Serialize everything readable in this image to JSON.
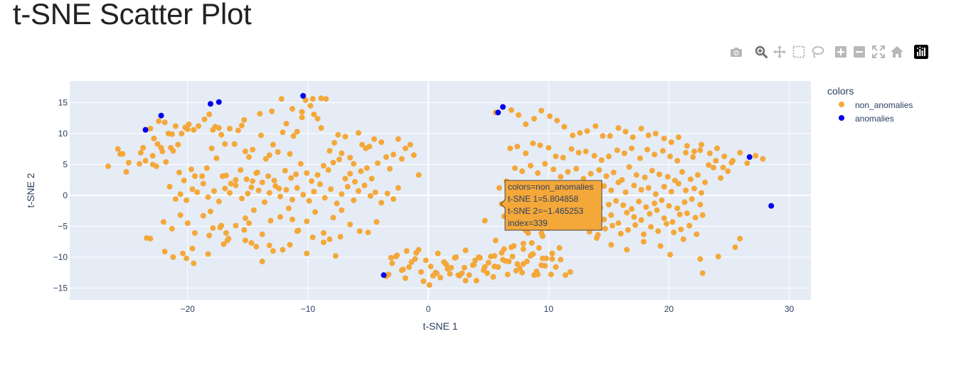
{
  "page": {
    "title": "t-SNE Scatter Plot"
  },
  "modebar": {
    "buttons": [
      {
        "name": "camera-icon",
        "title": "Download plot as a png"
      },
      {
        "name": "zoom-icon",
        "title": "Zoom"
      },
      {
        "name": "pan-icon",
        "title": "Pan"
      },
      {
        "name": "box-select-icon",
        "title": "Box Select"
      },
      {
        "name": "lasso-select-icon",
        "title": "Lasso Select"
      },
      {
        "name": "zoom-in-icon",
        "title": "Zoom in"
      },
      {
        "name": "zoom-out-icon",
        "title": "Zoom out"
      },
      {
        "name": "autoscale-icon",
        "title": "Autoscale"
      },
      {
        "name": "reset-axes-icon",
        "title": "Reset axes"
      },
      {
        "name": "plotly-logo-icon",
        "title": "Produced with Plotly"
      }
    ]
  },
  "colors": {
    "non_anomalies": "#F4A83A",
    "anomalies": "#0000EE",
    "plot_bg": "#E5ECF6",
    "grid": "#ffffff",
    "text": "#2a3f5f"
  },
  "chart_data": {
    "type": "scatter",
    "title": "",
    "xlabel": "t-SNE 1",
    "ylabel": "t-SNE 2",
    "xlim": [
      -29.8,
      31.8
    ],
    "ylim": [
      -16.9,
      18.5
    ],
    "xticks": [
      -20,
      -10,
      0,
      10,
      20,
      30
    ],
    "yticks": [
      -15,
      -10,
      -5,
      0,
      5,
      10,
      15
    ],
    "xtick_labels": [
      "−20",
      "−10",
      "0",
      "10",
      "20",
      "30"
    ],
    "ytick_labels": [
      "−15",
      "−10",
      "−5",
      "0",
      "5",
      "10",
      "15"
    ],
    "grid": true,
    "legend": {
      "title": "colors",
      "placement": "top-right",
      "entries": [
        "non_anomalies",
        "anomalies"
      ]
    },
    "hover": {
      "lines": [
        "colors=non_anomalies",
        "t-SNE 1=5.804858",
        "t-SNE 2=−1.465253",
        "index=339"
      ],
      "x": 5.804858,
      "y": -1.465253
    },
    "series": [
      {
        "name": "non_anomalies",
        "x": [
          -26.6,
          -25.8,
          -25.4,
          -25.1,
          -25.6,
          -24.9,
          -24.0,
          -23.9,
          -23.5,
          -22.9,
          -22.6,
          -22.2,
          -22.9,
          -23.7,
          -23.1,
          -22.4,
          -21.9,
          -21.6,
          -21.4,
          -21.2,
          -21.0,
          -20.8,
          -20.5,
          -20.2,
          -20.0,
          -19.9,
          -19.5,
          -19.1,
          -18.6,
          -18.2,
          -17.9,
          -17.7,
          -17.4,
          -17.2,
          -16.9,
          -16.5,
          -16.1,
          -15.8,
          -15.5,
          -15.2,
          -14.9,
          -14.6,
          -14.3,
          -13.9,
          -13.5,
          -13.2,
          -12.9,
          -12.5,
          -12.1,
          -11.8,
          -11.5,
          -11.2,
          -10.9,
          -10.5,
          -10.2,
          -9.8,
          -9.5,
          -9.2,
          -8.9,
          -8.5,
          -8.2,
          -7.8,
          -7.5,
          -7.2,
          -6.9,
          -6.5,
          -6.2,
          -5.8,
          -5.5,
          -5.2,
          -4.9,
          -4.5,
          -4.2,
          -3.9,
          -3.5,
          -3.2,
          -2.9,
          -2.5,
          -2.2,
          -1.9,
          -1.5,
          -1.2,
          -0.8,
          -22.8,
          -22.5,
          -22.1,
          -21.8,
          -21.3,
          -20.7,
          -20.3,
          -19.7,
          -19.4,
          -18.8,
          -18.4,
          -18.0,
          -17.6,
          -17.1,
          -16.8,
          -16.4,
          -16.0,
          -15.6,
          -15.1,
          -14.7,
          -14.2,
          -13.8,
          -13.3,
          -12.8,
          -12.4,
          -11.9,
          -11.4,
          -11.0,
          -10.6,
          -10.1,
          -9.7,
          -9.2,
          -8.7,
          -8.3,
          -7.9,
          -7.4,
          -6.9,
          -6.5,
          -6.1,
          -5.6,
          -5.1,
          -4.7,
          -21.5,
          -21.0,
          -20.6,
          -20.1,
          -19.6,
          -19.2,
          -18.7,
          -18.3,
          -17.8,
          -17.4,
          -16.9,
          -16.5,
          -16.0,
          -15.5,
          -15.0,
          -14.6,
          -14.1,
          -13.6,
          -13.2,
          -12.7,
          -12.3,
          -11.8,
          -11.3,
          -10.9,
          -10.4,
          -9.9,
          -9.5,
          -9.0,
          -8.6,
          -8.1,
          -7.6,
          -7.2,
          -6.7,
          -6.2,
          -5.8,
          -5.3,
          -4.8,
          -4.4,
          -3.9,
          -3.4,
          -2.9,
          -2.5,
          -23.4,
          -23.1,
          -22.0,
          -21.3,
          -20.6,
          -20.0,
          -19.4,
          -18.7,
          -18.1,
          -17.3,
          -16.6,
          -16.0,
          -15.2,
          -14.5,
          -13.8,
          -13.1,
          -12.3,
          -11.6,
          -10.9,
          -10.1,
          -9.4,
          -8.7,
          -7.9,
          -7.2,
          -6.5,
          -5.7,
          -5.0,
          -4.3,
          -21.9,
          -21.2,
          -20.4,
          -19.6,
          -18.2,
          -16.7,
          -15.3,
          -13.8,
          -12.9,
          -11.5,
          -10.1,
          -8.7,
          -7.3,
          -20.1,
          -19.5,
          -18.3,
          -17.0,
          -14.7,
          -14.3,
          -13.2,
          -17.9,
          -17.2,
          -16.8,
          -15.2,
          -14.9,
          -12.1,
          -11.3,
          -10.8,
          -9.6,
          -8.2,
          -7.7,
          -3.3,
          -3.0,
          -2.6,
          -2.2,
          -1.9,
          -1.4,
          -1.0,
          -0.6,
          -0.2,
          0.2,
          0.6,
          1.0,
          1.4,
          1.8,
          2.2,
          2.6,
          3.0,
          3.4,
          3.8,
          4.2,
          4.6,
          5.0,
          5.4,
          5.8,
          6.2,
          6.6,
          7.0,
          7.4,
          7.8,
          8.2,
          8.6,
          9.0,
          9.4,
          9.8,
          10.2,
          10.6,
          11.0,
          11.4,
          11.8,
          -3.1,
          -2.7,
          -2.1,
          -1.6,
          -1.1,
          -0.4,
          0.1,
          0.7,
          1.3,
          1.9,
          2.5,
          3.1,
          3.7,
          4.3,
          4.9,
          5.5,
          6.1,
          6.7,
          7.3,
          7.9,
          8.5,
          9.1,
          9.7,
          10.3,
          10.9,
          -3.5,
          -1.8,
          -0.8,
          0.4,
          1.6,
          2.8,
          4.0,
          5.2,
          6.4,
          7.6,
          8.8,
          0.8,
          1.5,
          2.3,
          3.1,
          3.9,
          4.7,
          5.5,
          6.3,
          7.1,
          7.9,
          8.7,
          9.5,
          10.3,
          5.6,
          6.2,
          6.9,
          7.5,
          8.1,
          8.8,
          9.4,
          10.1,
          10.7,
          11.3,
          12.0,
          12.6,
          13.2,
          13.9,
          14.5,
          15.1,
          15.8,
          16.4,
          17.0,
          17.7,
          18.3,
          18.9,
          19.6,
          20.2,
          20.8,
          21.5,
          22.1,
          22.7,
          23.4,
          24.0,
          24.6,
          25.3,
          25.9,
          26.5,
          27.2,
          27.8,
          6.8,
          7.4,
          8.1,
          8.7,
          9.3,
          10.0,
          10.6,
          11.2,
          11.9,
          12.5,
          13.1,
          13.8,
          14.4,
          15.0,
          15.7,
          16.3,
          16.9,
          17.6,
          18.2,
          18.8,
          19.5,
          20.1,
          20.7,
          21.4,
          22.0,
          22.6,
          23.3,
          23.9,
          24.5,
          25.2,
          7.2,
          7.8,
          8.5,
          9.1,
          9.7,
          10.4,
          11.0,
          11.6,
          12.3,
          12.9,
          13.5,
          14.2,
          14.8,
          15.4,
          16.1,
          16.7,
          17.3,
          18.0,
          18.6,
          19.2,
          19.9,
          20.5,
          21.1,
          21.8,
          22.4,
          23.0,
          23.7,
          24.3,
          24.9,
          5.9,
          6.5,
          7.1,
          7.7,
          8.3,
          8.9,
          9.6,
          10.2,
          10.8,
          11.4,
          12.1,
          12.7,
          13.3,
          13.9,
          14.6,
          15.2,
          15.8,
          16.4,
          17.1,
          17.7,
          18.3,
          18.9,
          19.6,
          20.2,
          20.8,
          21.4,
          22.1,
          22.7,
          6.1,
          6.7,
          7.4,
          8.0,
          8.6,
          9.3,
          9.9,
          10.5,
          11.2,
          11.8,
          12.4,
          13.1,
          13.7,
          14.3,
          15.0,
          15.6,
          16.2,
          16.9,
          17.5,
          18.1,
          18.8,
          19.4,
          20.0,
          20.7,
          21.3,
          21.9,
          22.6,
          6.3,
          7.0,
          7.6,
          8.2,
          8.9,
          9.5,
          10.1,
          10.8,
          11.4,
          12.0,
          12.7,
          13.3,
          13.9,
          14.6,
          15.2,
          15.8,
          16.5,
          17.1,
          17.7,
          18.4,
          19.0,
          19.6,
          20.3,
          20.9,
          21.5,
          22.2,
          22.8,
          7.5,
          8.1,
          8.8,
          9.4,
          10.0,
          10.7,
          13.4,
          14.1,
          14.7,
          15.3,
          16.0,
          16.6,
          17.2,
          17.9,
          18.5,
          19.1,
          19.8,
          20.4,
          21.0,
          21.7,
          22.3,
          4.7,
          5.6,
          6.9,
          7.9,
          8.3,
          8.6,
          9.2,
          9.5,
          14.0,
          15.2,
          16.5,
          17.9,
          19.3,
          20.1,
          21.2,
          22.6,
          24.1,
          25.5,
          25.9,
          22.8,
          -9.6,
          -8.9,
          -11.3,
          -10.5,
          -12.2,
          -13.0,
          -15.3,
          -14.0
        ],
        "y": [
          4.7,
          7.5,
          6.7,
          3.8,
          6.7,
          5.3,
          5.1,
          6.9,
          5.6,
          5.0,
          4.7,
          7.7,
          6.4,
          7.7,
          10.8,
          12.0,
          11.8,
          10.0,
          7.7,
          7.2,
          11.2,
          8.2,
          10.0,
          11.0,
          10.7,
          11.5,
          10.6,
          11.2,
          12.3,
          13.1,
          10.6,
          11.1,
          10.9,
          9.8,
          8.3,
          10.8,
          8.3,
          10.5,
          11.3,
          7.1,
          6.2,
          7.4,
          3.6,
          9.7,
          5.9,
          6.5,
          8.2,
          7.0,
          10.2,
          11.6,
          6.7,
          9.6,
          10.3,
          12.6,
          15.4,
          14.5,
          13.1,
          12.4,
          10.9,
          15.6,
          7.2,
          8.5,
          9.8,
          6.8,
          9.5,
          6.1,
          5.1,
          10.1,
          8.2,
          7.6,
          7.9,
          9.1,
          5.2,
          8.6,
          6.2,
          4.3,
          6.6,
          9.1,
          5.9,
          7.6,
          8.2,
          6.5,
          3.3,
          9.2,
          8.3,
          7.1,
          5.4,
          9.9,
          3.7,
          2.4,
          4.2,
          3.1,
          3.1,
          4.4,
          7.6,
          6.0,
          3.1,
          3.2,
          1.9,
          2.5,
          4.1,
          2.6,
          1.3,
          3.7,
          2.1,
          3.1,
          2.4,
          1.1,
          4.0,
          2.8,
          3.4,
          5.1,
          3.6,
          2.3,
          3.3,
          4.8,
          4.1,
          5.3,
          5.8,
          2.7,
          3.5,
          2.2,
          3.9,
          4.4,
          2.7,
          1.4,
          -0.6,
          0.2,
          -0.8,
          1.0,
          0.5,
          1.9,
          -0.3,
          0.7,
          -1.0,
          1.1,
          0.4,
          1.6,
          -0.5,
          0.3,
          2.3,
          0.8,
          -1.1,
          0.4,
          1.5,
          -0.2,
          0.9,
          -0.7,
          1.2,
          0.1,
          -0.9,
          0.6,
          1.8,
          -0.4,
          1.0,
          -1.3,
          0.2,
          1.4,
          -0.8,
          0.7,
          1.6,
          -0.1,
          0.5,
          -1.2,
          0.3,
          -0.6,
          1.2,
          -6.9,
          -7.0,
          -4.3,
          -5.4,
          -3.2,
          -4.5,
          -6.1,
          -3.3,
          -2.6,
          -5.2,
          -7.0,
          -4.9,
          -3.7,
          -2.4,
          -6.3,
          -4.1,
          -3.5,
          -2.1,
          -5.8,
          -4.2,
          -2.7,
          -6.1,
          -3.6,
          -2.4,
          -4.7,
          -5.8,
          -6.0,
          -4.3,
          -9.1,
          -10.0,
          -9.4,
          -8.6,
          -6.5,
          -7.3,
          -5.6,
          -10.7,
          -9.0,
          -8.0,
          -9.4,
          -7.6,
          -6.7,
          -10.2,
          -11.0,
          -9.5,
          -7.9,
          -7.7,
          -8.3,
          -8.1,
          -5.3,
          -4.9,
          -6.1,
          -7.3,
          -4.5,
          -8.8,
          -3.9,
          -5.7,
          -6.8,
          -7.1,
          -9.8,
          -12.8,
          -11.0,
          -9.7,
          -12.1,
          -13.4,
          -10.8,
          -9.3,
          -12.4,
          -10.5,
          -11.5,
          -12.5,
          -13.3,
          -11.0,
          -12.7,
          -10.1,
          -13.0,
          -11.7,
          -12.9,
          -11.2,
          -10.0,
          -12.1,
          -10.9,
          -13.2,
          -11.6,
          -10.4,
          -12.8,
          -9.9,
          -11.1,
          -12.5,
          -10.7,
          -9.6,
          -12.3,
          -11.3,
          -10.2,
          -12.8,
          -11.6,
          -10.4,
          -12.9,
          -12.4,
          -10.1,
          -9.9,
          -12.0,
          -11.6,
          -10.3,
          -13.9,
          -14.5,
          -12.6,
          -10.8,
          -11.7,
          -12.9,
          -13.8,
          -11.3,
          -10.1,
          -12.6,
          -11.5,
          -9.3,
          -10.7,
          -12.2,
          -11.1,
          -9.8,
          -12.8,
          -11.4,
          -10.3,
          -8.5,
          -13.1,
          -9.0,
          -8.8,
          -13.0,
          -11.9,
          -12.6,
          -13.8,
          -9.9,
          -10.6,
          -11.8,
          -12.9,
          -9.4,
          -11.2,
          -10.0,
          -8.9,
          -10.5,
          -11.6,
          -9.8,
          -8.7,
          -8.2,
          -7.8,
          -9.5,
          -10.2,
          -9.4,
          13.4,
          14.3,
          13.8,
          13.0,
          11.5,
          12.4,
          13.7,
          12.8,
          12.1,
          11.1,
          9.7,
          10.1,
          10.4,
          11.2,
          9.6,
          9.6,
          10.9,
          10.3,
          9.4,
          10.8,
          9.7,
          10.0,
          9.2,
          8.6,
          9.4,
          8.0,
          7.1,
          8.2,
          6.8,
          7.6,
          6.3,
          5.6,
          6.9,
          5.2,
          6.4,
          5.9,
          7.6,
          7.9,
          6.8,
          8.4,
          8.1,
          7.7,
          6.3,
          6.1,
          7.5,
          6.9,
          7.1,
          6.4,
          5.7,
          6.3,
          7.3,
          6.8,
          7.6,
          6.0,
          7.4,
          6.6,
          7.2,
          6.3,
          5.6,
          6.9,
          6.2,
          7.3,
          4.9,
          5.6,
          4.5,
          5.3,
          4.4,
          3.9,
          4.8,
          3.6,
          5.1,
          4.2,
          3.0,
          3.8,
          4.3,
          2.7,
          3.5,
          4.1,
          3.1,
          3.7,
          2.5,
          4.6,
          3.3,
          2.9,
          4.0,
          3.4,
          3.0,
          2.4,
          3.8,
          2.6,
          3.3,
          2.1,
          4.5,
          2.8,
          3.9,
          1.2,
          2.3,
          0.9,
          1.7,
          0.4,
          1.9,
          1.1,
          0.6,
          2.0,
          1.3,
          0.7,
          1.8,
          1.0,
          0.3,
          1.5,
          0.8,
          2.1,
          0.5,
          1.6,
          0.9,
          1.2,
          0.2,
          1.4,
          0.6,
          1.9,
          0.8,
          1.1,
          0.4,
          -1.4,
          -0.8,
          -1.9,
          -1.1,
          -0.5,
          -1.7,
          -1.0,
          -2.1,
          -1.3,
          -0.7,
          -1.8,
          -1.2,
          -0.6,
          -2.0,
          -1.5,
          -0.9,
          -1.6,
          -2.2,
          -1.0,
          -1.9,
          -1.3,
          -0.8,
          -1.7,
          -2.1,
          -1.1,
          -0.6,
          -1.5,
          -3.4,
          -2.9,
          -4.1,
          -3.3,
          -2.7,
          -3.8,
          -4.4,
          -3.0,
          -2.6,
          -3.6,
          -4.2,
          -3.1,
          -2.5,
          -3.9,
          -3.2,
          -4.5,
          -2.8,
          -3.5,
          -4.0,
          -3.0,
          -2.4,
          -3.7,
          -4.3,
          -3.1,
          -2.9,
          -3.6,
          -3.2,
          -5.0,
          -5.7,
          -4.8,
          -6.1,
          -5.3,
          -4.7,
          -5.9,
          -6.4,
          -5.4,
          -4.9,
          -6.2,
          -5.6,
          -4.8,
          -6.3,
          -5.1,
          -5.8,
          -4.6,
          -6.0,
          -5.5,
          -4.9,
          -6.3,
          -4.1,
          -7.3,
          -8.4,
          -8.7,
          -6.1,
          -7.7,
          -8.5,
          -6.6,
          -6.9,
          -8.0,
          -8.8,
          -7.5,
          -8.2,
          -9.6,
          -7.1,
          -10.3,
          -9.9,
          -8.4,
          -7.0,
          -12.6,
          15.6,
          15.7,
          14.0,
          13.5,
          15.6,
          13.6,
          12.2,
          13.2
        ],
        "color": "#F4A83A"
      },
      {
        "name": "anomalies",
        "x": [
          -23.5,
          -22.2,
          -18.1,
          -17.4,
          -10.4,
          -3.7,
          5.8,
          6.2,
          26.7,
          28.5
        ],
        "y": [
          10.6,
          12.9,
          14.8,
          15.1,
          16.1,
          -12.9,
          13.4,
          14.3,
          6.2,
          -1.7
        ],
        "color": "#0000EE"
      }
    ]
  }
}
